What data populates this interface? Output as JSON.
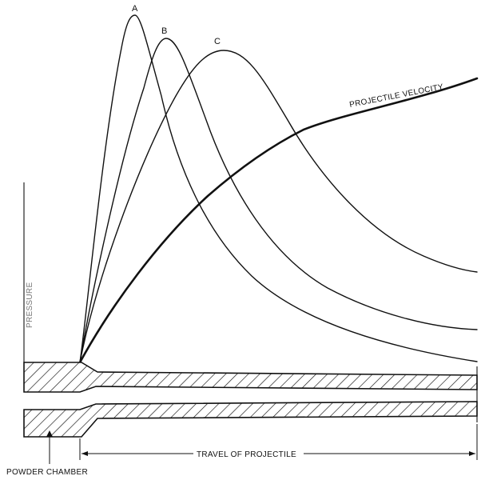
{
  "labels": {
    "curve_a": "A",
    "curve_b": "B",
    "curve_c": "C",
    "velocity": "PROJECTILE VELOCITY",
    "y_axis": "PRESSURE",
    "travel": "TRAVEL OF PROJECTILE",
    "chamber": "POWDER CHAMBER"
  },
  "colors": {
    "ink": "#111111",
    "axis_label": "#777777"
  }
}
